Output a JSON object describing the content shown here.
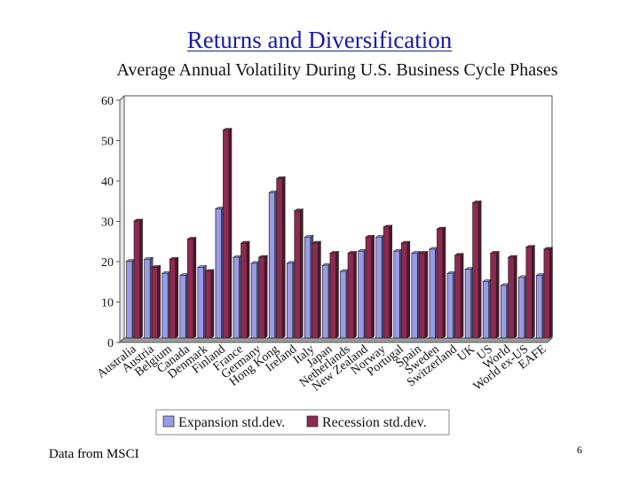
{
  "slide": {
    "title": "Returns and Diversification",
    "footer": "Data from MSCI",
    "page_number": "6"
  },
  "colors": {
    "expansion": "#9a9ae6",
    "recession": "#8e2a52",
    "title": "#1a1aa8"
  },
  "chart_data": {
    "type": "bar",
    "title": "Average Annual Volatility During U.S. Business Cycle Phases",
    "xlabel": "",
    "ylabel": "",
    "ylim": [
      0,
      60
    ],
    "yticks": [
      0,
      10,
      20,
      30,
      40,
      50,
      60
    ],
    "grid": false,
    "legend_position": "bottom",
    "categories": [
      "Australia",
      "Austria",
      "Belgium",
      "Canada",
      "Denmark",
      "Finland",
      "France",
      "Germany",
      "Hong Kong",
      "Ireland",
      "Italy",
      "Japan",
      "Netherlands",
      "New Zealand",
      "Norway",
      "Portugal",
      "Spain",
      "Sweden",
      "Switzerland",
      "UK",
      "US",
      "World",
      "World ex-US",
      "EAFE"
    ],
    "series": [
      {
        "name": "Expansion std.dev.",
        "values": [
          19,
          19.5,
          16,
          15.5,
          17.5,
          32,
          20,
          18.5,
          36,
          18.5,
          25,
          18,
          16.5,
          21.5,
          25,
          21.5,
          21,
          22,
          16,
          17,
          14,
          13,
          15,
          15.5
        ]
      },
      {
        "name": "Recession std.dev.",
        "values": [
          29,
          17.5,
          19.5,
          24.5,
          16.5,
          51.5,
          23.5,
          20,
          39.5,
          31.5,
          23.5,
          21,
          21,
          25,
          27.5,
          23.5,
          21,
          27,
          20.5,
          33.5,
          21,
          20,
          22.5,
          22
        ]
      }
    ]
  }
}
